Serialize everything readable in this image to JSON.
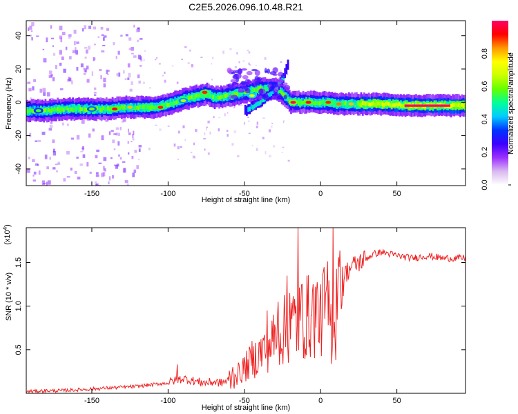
{
  "title": "C2E5.2026.096.10.48.R21",
  "chart_data": [
    {
      "type": "heatmap",
      "xlabel": "Height of straight line (km)",
      "ylabel": "Frequency (Hz)",
      "xlim": [
        -193,
        95
      ],
      "ylim": [
        -50,
        49
      ],
      "x_ticks": [
        -150,
        -100,
        -50,
        0,
        50
      ],
      "y_ticks": [
        -40,
        -20,
        0,
        20,
        40
      ],
      "colorbar": {
        "label": "Normalized spectral amplitude",
        "range": [
          0,
          1
        ],
        "ticks": [
          "0.0",
          "0.2",
          "0.4",
          "0.6",
          "0.8"
        ],
        "tick_values": [
          0,
          0.2,
          0.4,
          0.6,
          0.8
        ],
        "colors": [
          "#ffffff",
          "#d9b8f0",
          "#9b30ff",
          "#3b00ff",
          "#0033ff",
          "#00ccff",
          "#00ff99",
          "#66ff00",
          "#ccff00",
          "#ffff00",
          "#ff9900",
          "#ff0000",
          "#ff0066"
        ]
      },
      "ridge": {
        "x": [
          -193,
          -180,
          -170,
          -160,
          -150,
          -140,
          -130,
          -120,
          -110,
          -100,
          -90,
          -80,
          -75,
          -70,
          -60,
          -50,
          -40,
          -30,
          -25,
          -20,
          -10,
          0,
          10,
          20,
          40,
          60,
          80,
          95
        ],
        "y": [
          -5,
          -5,
          -4,
          -4,
          -4,
          -4,
          -3,
          -3,
          -3,
          -1,
          2,
          4,
          5,
          3,
          4,
          6,
          8,
          8,
          5,
          0,
          0,
          0,
          -1,
          -1,
          -1,
          -2,
          -2,
          -2
        ]
      },
      "branch": {
        "x": [
          -50,
          -40,
          -30,
          -25,
          -22
        ],
        "y": [
          -5,
          0,
          8,
          15,
          22
        ]
      },
      "hot_spots": [
        {
          "x": -185,
          "y": -5,
          "v": 0.55
        },
        {
          "x": -150,
          "y": -4,
          "v": 0.6
        },
        {
          "x": -135,
          "y": -4,
          "v": 0.95
        },
        {
          "x": -125,
          "y": -3,
          "v": 0.8
        },
        {
          "x": -105,
          "y": -3,
          "v": 0.9
        },
        {
          "x": -90,
          "y": 1,
          "v": 0.65
        },
        {
          "x": -76,
          "y": 6,
          "v": 0.9
        },
        {
          "x": -45,
          "y": 4,
          "v": 0.7
        },
        {
          "x": -18,
          "y": 0,
          "v": 1.0
        },
        {
          "x": -8,
          "y": 0,
          "v": 0.95
        },
        {
          "x": 5,
          "y": 0,
          "v": 0.9
        },
        {
          "x": 12,
          "y": -1,
          "v": 0.85
        },
        {
          "x": 20,
          "y": -1,
          "v": 0.8
        }
      ],
      "hot_band": {
        "x": [
          55,
          85
        ],
        "y": -2,
        "v": 1.0
      }
    },
    {
      "type": "line",
      "xlabel": "Height of straight line (km)",
      "ylabel": "SNR (10 * v/v)",
      "multiplier": "(x10^4)",
      "xlim": [
        -193,
        95
      ],
      "ylim": [
        0,
        1.9
      ],
      "x_ticks": [
        -150,
        -100,
        -50,
        0,
        50
      ],
      "y_ticks": [
        0.5,
        1.0,
        1.5
      ],
      "y_tick_labels": [
        "0.5",
        "1.0",
        "1.5"
      ],
      "line_color": "#ee2222",
      "series": [
        {
          "x": [
            -193,
            -180,
            -170,
            -160,
            -150,
            -140,
            -130,
            -120,
            -110,
            -100,
            -95,
            -90,
            -85,
            -80,
            -75,
            -70,
            -65,
            -60,
            -55,
            -50,
            -45,
            -40,
            -35,
            -30,
            -25,
            -20,
            -15,
            -10,
            -5,
            0,
            5,
            8,
            10,
            15,
            20,
            25,
            30,
            35,
            40,
            45,
            50,
            60,
            70,
            80,
            90,
            95
          ],
          "y": [
            0.02,
            0.03,
            0.03,
            0.04,
            0.05,
            0.06,
            0.07,
            0.08,
            0.1,
            0.12,
            0.15,
            0.17,
            0.15,
            0.13,
            0.12,
            0.13,
            0.12,
            0.15,
            0.25,
            0.35,
            0.45,
            0.55,
            0.65,
            0.75,
            0.85,
            0.95,
            1.0,
            1.05,
            1.1,
            1.15,
            1.2,
            0.75,
            1.2,
            1.35,
            1.45,
            1.5,
            1.55,
            1.6,
            1.62,
            1.6,
            1.58,
            1.55,
            1.58,
            1.55,
            1.55,
            1.55
          ]
        }
      ],
      "spikes": [
        {
          "x": -94,
          "y": 0.33
        },
        {
          "x": -45,
          "y": 0.6
        },
        {
          "x": -35,
          "y": 0.95
        },
        {
          "x": -28,
          "y": 1.05
        },
        {
          "x": -22,
          "y": 1.35
        },
        {
          "x": -20,
          "y": 1.15
        },
        {
          "x": -15,
          "y": 1.9
        },
        {
          "x": -12,
          "y": 1.25
        },
        {
          "x": 0,
          "y": 1.25
        },
        {
          "x": 8,
          "y": 1.9
        },
        {
          "x": 12,
          "y": 1.45
        },
        {
          "x": 10,
          "y": 0.38
        }
      ]
    }
  ]
}
